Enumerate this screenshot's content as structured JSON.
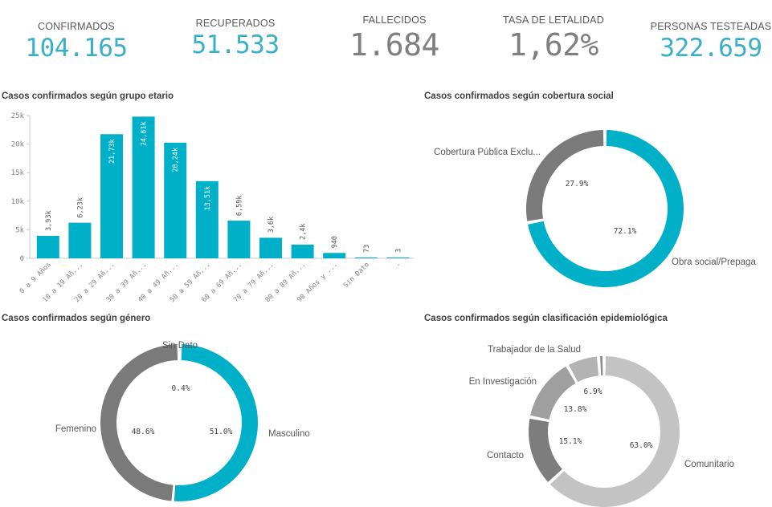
{
  "kpis": [
    {
      "label": "CONFIRMADOS",
      "value": "104.165",
      "color": "#3ab0c8"
    },
    {
      "label": "RECUPERADOS",
      "value": "51.533",
      "color": "#3ab0c8"
    },
    {
      "label": "FALLECIDOS",
      "value": "1.684",
      "color": "#7f7f7f"
    },
    {
      "label": "TASA DE LETALIDAD",
      "value": "1,62%",
      "color": "#7f7f7f"
    },
    {
      "label": "PERSONAS TESTEADAS",
      "value": "322.659",
      "color": "#3ab0c8"
    }
  ],
  "chart_data": [
    {
      "type": "bar",
      "title": "Casos confirmados según grupo etario",
      "categories": [
        "0 a 9 Años",
        "10 a 19 Añ...",
        "20 a 29 Añ...",
        "30 a 39 Añ...",
        "40 a 49 Añ...",
        "50 a 59 Añ...",
        "60 a 69 Añ...",
        "70 a 79 Añ...",
        "80 a 89 Añ...",
        "90 Años y ...",
        "Sin Dato",
        "-"
      ],
      "values": [
        3930,
        6230,
        21730,
        24810,
        20240,
        13510,
        6590,
        3600,
        2400,
        940,
        73,
        3
      ],
      "value_labels": [
        "3,93k",
        "6,23k",
        "21,73k",
        "24,81k",
        "20,24k",
        "13,51k",
        "6,59k",
        "3,6k",
        "2,4k",
        "940",
        "73",
        "3"
      ],
      "yticks": [
        "0",
        "5k",
        "10k",
        "15k",
        "20k",
        "25k"
      ],
      "ylim": [
        0,
        25000
      ],
      "color": "#00afc8"
    },
    {
      "type": "pie",
      "title": "Casos confirmados según cobertura social",
      "slices": [
        {
          "label": "Obra social/Prepaga",
          "value": 72.1,
          "pct_label": "72.1%",
          "color": "#00afc8"
        },
        {
          "label": "Cobertura Pública Exclu...",
          "value": 27.9,
          "pct_label": "27.9%",
          "color": "#7a7a7a"
        }
      ]
    },
    {
      "type": "pie",
      "title": "Casos confirmados según género",
      "slices": [
        {
          "label": "Masculino",
          "value": 51.0,
          "pct_label": "51.0%",
          "color": "#00afc8"
        },
        {
          "label": "Femenino",
          "value": 48.6,
          "pct_label": "48.6%",
          "color": "#7a7a7a"
        },
        {
          "label": "Sin Dato",
          "value": 0.4,
          "pct_label": "0.4%",
          "color": "#bfbfbf"
        }
      ]
    },
    {
      "type": "pie",
      "title": "Casos confirmados según clasificación epidemiológica",
      "slices": [
        {
          "label": "Comunitario",
          "value": 63.0,
          "pct_label": "63.0%",
          "color": "#c3c3c3"
        },
        {
          "label": "Contacto",
          "value": 15.1,
          "pct_label": "15.1%",
          "color": "#7d7d7d"
        },
        {
          "label": "En Investigación",
          "value": 13.8,
          "pct_label": "13.8%",
          "color": "#9f9f9f"
        },
        {
          "label": "Trabajador de la Salud",
          "value": 6.9,
          "pct_label": "6.9%",
          "color": "#b3b3b3"
        },
        {
          "label": "",
          "value": 1.2,
          "pct_label": "",
          "color": "#8f8f8f"
        }
      ]
    }
  ]
}
